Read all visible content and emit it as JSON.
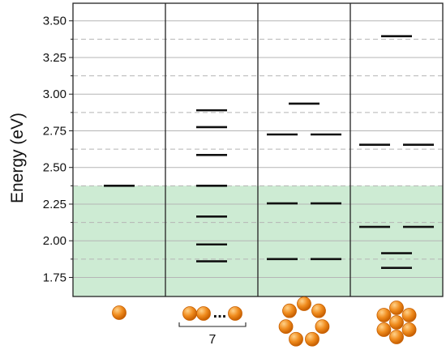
{
  "chart_data": {
    "type": "energy-level diagram",
    "ylabel": "Energy (eV)",
    "ylim": [
      1.62,
      3.62
    ],
    "yticks": [
      "1.75",
      "2.00",
      "2.25",
      "2.50",
      "2.75",
      "3.00",
      "3.25",
      "3.50"
    ],
    "ytick_values": [
      1.75,
      2.0,
      2.25,
      2.5,
      2.75,
      3.0,
      3.25,
      3.5
    ],
    "dashed_gridlines": [
      1.875,
      2.125,
      2.375,
      2.625,
      2.875,
      3.125,
      3.375
    ],
    "shaded_region": {
      "from": 1.62,
      "to": 2.375,
      "color": "#cdebd3"
    },
    "panels": [
      {
        "label": "",
        "levels": [
          {
            "energy": 2.375,
            "slot": "center"
          }
        ]
      },
      {
        "label": "7",
        "levels": [
          {
            "energy": 1.86,
            "slot": "center"
          },
          {
            "energy": 1.975,
            "slot": "center"
          },
          {
            "energy": 2.165,
            "slot": "center"
          },
          {
            "energy": 2.375,
            "slot": "center"
          },
          {
            "energy": 2.585,
            "slot": "center"
          },
          {
            "energy": 2.775,
            "slot": "center"
          },
          {
            "energy": 2.89,
            "slot": "center"
          }
        ]
      },
      {
        "label": "",
        "levels": [
          {
            "energy": 1.875,
            "slot": "left"
          },
          {
            "energy": 1.875,
            "slot": "right"
          },
          {
            "energy": 2.255,
            "slot": "left"
          },
          {
            "energy": 2.255,
            "slot": "right"
          },
          {
            "energy": 2.725,
            "slot": "left"
          },
          {
            "energy": 2.725,
            "slot": "right"
          },
          {
            "energy": 2.935,
            "slot": "center"
          }
        ]
      },
      {
        "label": "",
        "levels": [
          {
            "energy": 1.815,
            "slot": "center"
          },
          {
            "energy": 1.915,
            "slot": "center"
          },
          {
            "energy": 2.095,
            "slot": "left"
          },
          {
            "energy": 2.095,
            "slot": "right"
          },
          {
            "energy": 2.655,
            "slot": "left"
          },
          {
            "energy": 2.655,
            "slot": "right"
          },
          {
            "energy": 3.395,
            "slot": "center"
          }
        ]
      }
    ],
    "structures": [
      "monomer",
      "linear-chain",
      "ring",
      "ring-with-center"
    ],
    "ellipsis": "...",
    "colors": {
      "level": "#111111",
      "grid_solid": "#b5b5b5",
      "grid_dashed": "#b5b5b5",
      "border": "#222222",
      "sphere_fill": "#f08c1e",
      "sphere_dark": "#c75f00",
      "sphere_highlight": "#ffd28a"
    }
  }
}
